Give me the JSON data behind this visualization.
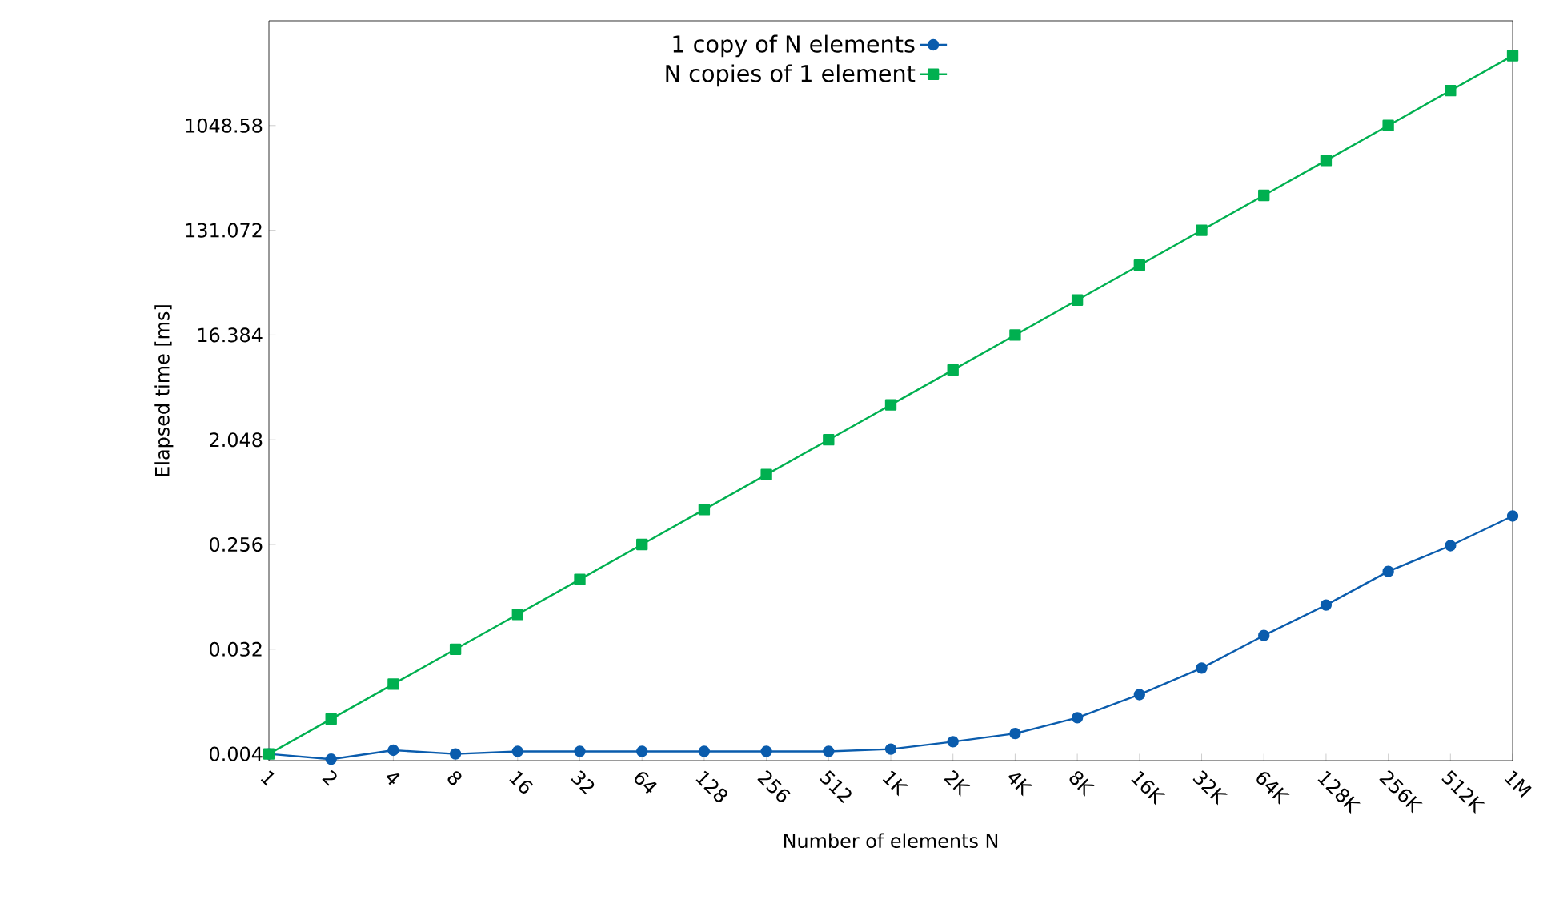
{
  "chart_data": {
    "type": "line",
    "xlabel": "Number of elements N",
    "ylabel": "Elapsed time [ms]",
    "categories": [
      "1",
      "2",
      "4",
      "8",
      "16",
      "32",
      "64",
      "128",
      "256",
      "512",
      "1K",
      "2K",
      "4K",
      "8K",
      "16K",
      "32K",
      "64K",
      "128K",
      "256K",
      "512K",
      "1M"
    ],
    "series": [
      {
        "name": "1 copy of N elements",
        "color": "#0a5cad",
        "marker": "circle",
        "values": [
          0.004,
          0.0036,
          0.0043,
          0.004,
          0.0042,
          0.0042,
          0.0042,
          0.0042,
          0.0042,
          0.0042,
          0.0044,
          0.0051,
          0.006,
          0.0082,
          0.013,
          0.022,
          0.042,
          0.077,
          0.15,
          0.25,
          0.45
        ]
      },
      {
        "name": "N copies of 1 element",
        "color": "#00b050",
        "marker": "square",
        "values": [
          0.004,
          0.008,
          0.016,
          0.032,
          0.064,
          0.128,
          0.256,
          0.512,
          1.024,
          2.048,
          4.096,
          8.192,
          16.384,
          32.768,
          65.536,
          131.072,
          262.144,
          524.288,
          1048.576,
          2097.152,
          4194.304
        ]
      }
    ],
    "log": "y",
    "ylim": [
      0.0035,
      8388.6
    ],
    "yticks": [
      0.004,
      0.032,
      0.256,
      2.048,
      16.384,
      131.072,
      {
        "value": 1048.576,
        "label": "1048.58"
      }
    ],
    "grid": false,
    "legend": "top",
    "line_style": "solid"
  }
}
